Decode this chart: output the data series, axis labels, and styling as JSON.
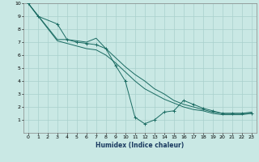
{
  "xlabel": "Humidex (Indice chaleur)",
  "xlim": [
    -0.5,
    23.5
  ],
  "ylim": [
    0,
    10
  ],
  "xticks": [
    0,
    1,
    2,
    3,
    4,
    5,
    6,
    7,
    8,
    9,
    10,
    11,
    12,
    13,
    14,
    15,
    16,
    17,
    18,
    19,
    20,
    21,
    22,
    23
  ],
  "yticks": [
    1,
    2,
    3,
    4,
    5,
    6,
    7,
    8,
    9,
    10
  ],
  "background_color": "#c9e8e4",
  "grid_color": "#a8d0cc",
  "line_color": "#1a6b62",
  "series": [
    {
      "x": [
        0,
        1,
        3,
        4,
        5,
        6,
        7,
        8,
        9,
        10,
        11,
        12,
        13,
        14,
        15,
        16,
        17,
        18,
        19,
        20,
        21,
        22,
        23
      ],
      "y": [
        10,
        9,
        8.4,
        7.2,
        7.0,
        6.9,
        6.8,
        6.5,
        5.2,
        4.0,
        1.2,
        0.7,
        1.0,
        1.6,
        1.7,
        2.5,
        2.2,
        1.9,
        1.7,
        1.5,
        1.5,
        1.5,
        1.5
      ],
      "has_markers": true
    },
    {
      "x": [
        0,
        3,
        4,
        5,
        6,
        7,
        8,
        9,
        10,
        11,
        12,
        13,
        14,
        15,
        16,
        17,
        18,
        19,
        20,
        21,
        22,
        23
      ],
      "y": [
        10,
        7.2,
        7.2,
        7.1,
        7.0,
        7.3,
        6.5,
        5.8,
        5.1,
        4.5,
        4.0,
        3.4,
        3.0,
        2.5,
        2.2,
        2.0,
        1.8,
        1.6,
        1.5,
        1.5,
        1.5,
        1.6
      ],
      "has_markers": false
    },
    {
      "x": [
        0,
        3,
        4,
        5,
        6,
        7,
        8,
        9,
        10,
        11,
        12,
        13,
        14,
        15,
        16,
        17,
        18,
        19,
        20,
        21,
        22,
        23
      ],
      "y": [
        10,
        7.1,
        6.9,
        6.7,
        6.5,
        6.4,
        6.0,
        5.4,
        4.7,
        4.0,
        3.4,
        3.0,
        2.6,
        2.3,
        2.0,
        1.8,
        1.7,
        1.5,
        1.4,
        1.4,
        1.4,
        1.5
      ],
      "has_markers": false
    }
  ]
}
